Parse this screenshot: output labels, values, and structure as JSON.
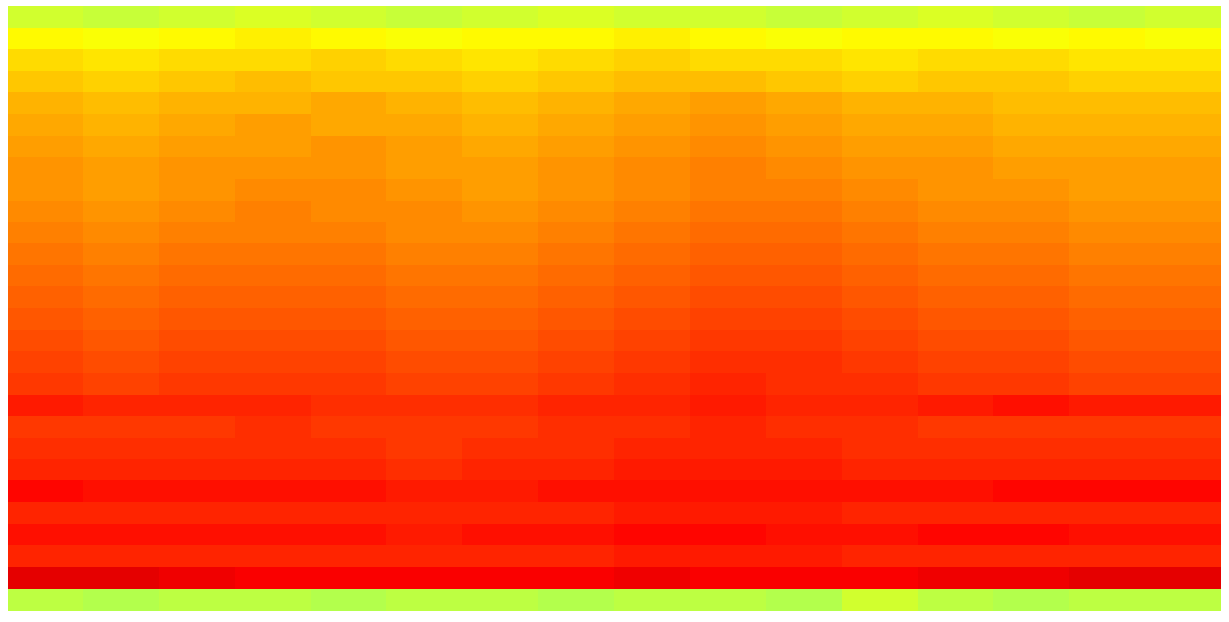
{
  "chart_data": {
    "type": "heatmap",
    "color": "jet",
    "tick_labels": false,
    "cells": [
      [
        0.58,
        0.57,
        0.58,
        0.59,
        0.58,
        0.57,
        0.58,
        0.59,
        0.58,
        0.58,
        0.57,
        0.58,
        0.59,
        0.58,
        0.57,
        0.58
      ],
      [
        0.63,
        0.62,
        0.63,
        0.64,
        0.63,
        0.62,
        0.63,
        0.63,
        0.64,
        0.63,
        0.62,
        0.63,
        0.63,
        0.62,
        0.63,
        0.62
      ],
      [
        0.66,
        0.65,
        0.66,
        0.66,
        0.67,
        0.66,
        0.65,
        0.66,
        0.67,
        0.66,
        0.66,
        0.65,
        0.66,
        0.66,
        0.65,
        0.65
      ],
      [
        0.68,
        0.67,
        0.68,
        0.69,
        0.68,
        0.68,
        0.67,
        0.68,
        0.69,
        0.69,
        0.68,
        0.67,
        0.68,
        0.68,
        0.67,
        0.67
      ],
      [
        0.7,
        0.69,
        0.7,
        0.7,
        0.71,
        0.7,
        0.69,
        0.7,
        0.71,
        0.72,
        0.71,
        0.7,
        0.7,
        0.69,
        0.69,
        0.69
      ],
      [
        0.71,
        0.7,
        0.71,
        0.72,
        0.71,
        0.71,
        0.7,
        0.71,
        0.72,
        0.73,
        0.72,
        0.71,
        0.71,
        0.7,
        0.7,
        0.7
      ],
      [
        0.72,
        0.71,
        0.72,
        0.72,
        0.73,
        0.72,
        0.71,
        0.72,
        0.73,
        0.74,
        0.73,
        0.72,
        0.72,
        0.71,
        0.71,
        0.71
      ],
      [
        0.73,
        0.72,
        0.73,
        0.73,
        0.73,
        0.72,
        0.72,
        0.73,
        0.74,
        0.75,
        0.74,
        0.73,
        0.73,
        0.72,
        0.72,
        0.72
      ],
      [
        0.73,
        0.72,
        0.73,
        0.74,
        0.74,
        0.73,
        0.72,
        0.73,
        0.74,
        0.75,
        0.75,
        0.74,
        0.73,
        0.73,
        0.72,
        0.72
      ],
      [
        0.74,
        0.73,
        0.74,
        0.75,
        0.74,
        0.74,
        0.73,
        0.74,
        0.75,
        0.76,
        0.76,
        0.75,
        0.74,
        0.74,
        0.73,
        0.73
      ],
      [
        0.75,
        0.74,
        0.75,
        0.75,
        0.75,
        0.74,
        0.74,
        0.75,
        0.76,
        0.77,
        0.77,
        0.76,
        0.75,
        0.75,
        0.74,
        0.74
      ],
      [
        0.76,
        0.75,
        0.76,
        0.76,
        0.76,
        0.75,
        0.75,
        0.76,
        0.77,
        0.78,
        0.78,
        0.77,
        0.76,
        0.76,
        0.75,
        0.75
      ],
      [
        0.77,
        0.76,
        0.77,
        0.77,
        0.77,
        0.76,
        0.76,
        0.77,
        0.78,
        0.79,
        0.79,
        0.78,
        0.77,
        0.77,
        0.76,
        0.76
      ],
      [
        0.78,
        0.77,
        0.78,
        0.78,
        0.78,
        0.77,
        0.77,
        0.78,
        0.79,
        0.8,
        0.8,
        0.79,
        0.78,
        0.78,
        0.77,
        0.77
      ],
      [
        0.79,
        0.78,
        0.79,
        0.79,
        0.79,
        0.78,
        0.78,
        0.79,
        0.8,
        0.81,
        0.81,
        0.8,
        0.79,
        0.79,
        0.78,
        0.78
      ],
      [
        0.8,
        0.79,
        0.8,
        0.8,
        0.8,
        0.79,
        0.79,
        0.8,
        0.81,
        0.82,
        0.82,
        0.81,
        0.8,
        0.8,
        0.79,
        0.79
      ],
      [
        0.81,
        0.8,
        0.81,
        0.81,
        0.81,
        0.8,
        0.8,
        0.81,
        0.82,
        0.83,
        0.83,
        0.82,
        0.81,
        0.81,
        0.8,
        0.8
      ],
      [
        0.82,
        0.81,
        0.82,
        0.82,
        0.82,
        0.81,
        0.81,
        0.82,
        0.83,
        0.84,
        0.83,
        0.83,
        0.82,
        0.82,
        0.81,
        0.81
      ],
      [
        0.85,
        0.84,
        0.84,
        0.84,
        0.83,
        0.83,
        0.83,
        0.84,
        0.84,
        0.85,
        0.84,
        0.84,
        0.85,
        0.86,
        0.85,
        0.85
      ],
      [
        0.82,
        0.82,
        0.82,
        0.83,
        0.82,
        0.82,
        0.82,
        0.83,
        0.83,
        0.84,
        0.83,
        0.83,
        0.82,
        0.82,
        0.82,
        0.82
      ],
      [
        0.83,
        0.83,
        0.83,
        0.83,
        0.83,
        0.82,
        0.83,
        0.83,
        0.84,
        0.84,
        0.84,
        0.83,
        0.83,
        0.83,
        0.83,
        0.83
      ],
      [
        0.84,
        0.84,
        0.84,
        0.84,
        0.84,
        0.83,
        0.84,
        0.84,
        0.85,
        0.85,
        0.85,
        0.84,
        0.84,
        0.84,
        0.84,
        0.84
      ],
      [
        0.87,
        0.86,
        0.86,
        0.86,
        0.86,
        0.85,
        0.85,
        0.86,
        0.86,
        0.86,
        0.86,
        0.86,
        0.86,
        0.87,
        0.87,
        0.87
      ],
      [
        0.84,
        0.84,
        0.84,
        0.84,
        0.84,
        0.84,
        0.84,
        0.84,
        0.85,
        0.85,
        0.85,
        0.84,
        0.84,
        0.84,
        0.84,
        0.84
      ],
      [
        0.86,
        0.86,
        0.86,
        0.86,
        0.86,
        0.85,
        0.86,
        0.86,
        0.87,
        0.87,
        0.86,
        0.86,
        0.87,
        0.87,
        0.86,
        0.86
      ],
      [
        0.84,
        0.84,
        0.84,
        0.84,
        0.84,
        0.84,
        0.84,
        0.84,
        0.85,
        0.85,
        0.85,
        0.84,
        0.84,
        0.84,
        0.84,
        0.84
      ],
      [
        0.9,
        0.9,
        0.89,
        0.88,
        0.88,
        0.88,
        0.88,
        0.88,
        0.89,
        0.88,
        0.88,
        0.88,
        0.89,
        0.89,
        0.9,
        0.9
      ],
      [
        0.56,
        0.55,
        0.56,
        0.56,
        0.55,
        0.56,
        0.56,
        0.55,
        0.56,
        0.56,
        0.55,
        0.58,
        0.56,
        0.55,
        0.56,
        0.56
      ]
    ]
  }
}
